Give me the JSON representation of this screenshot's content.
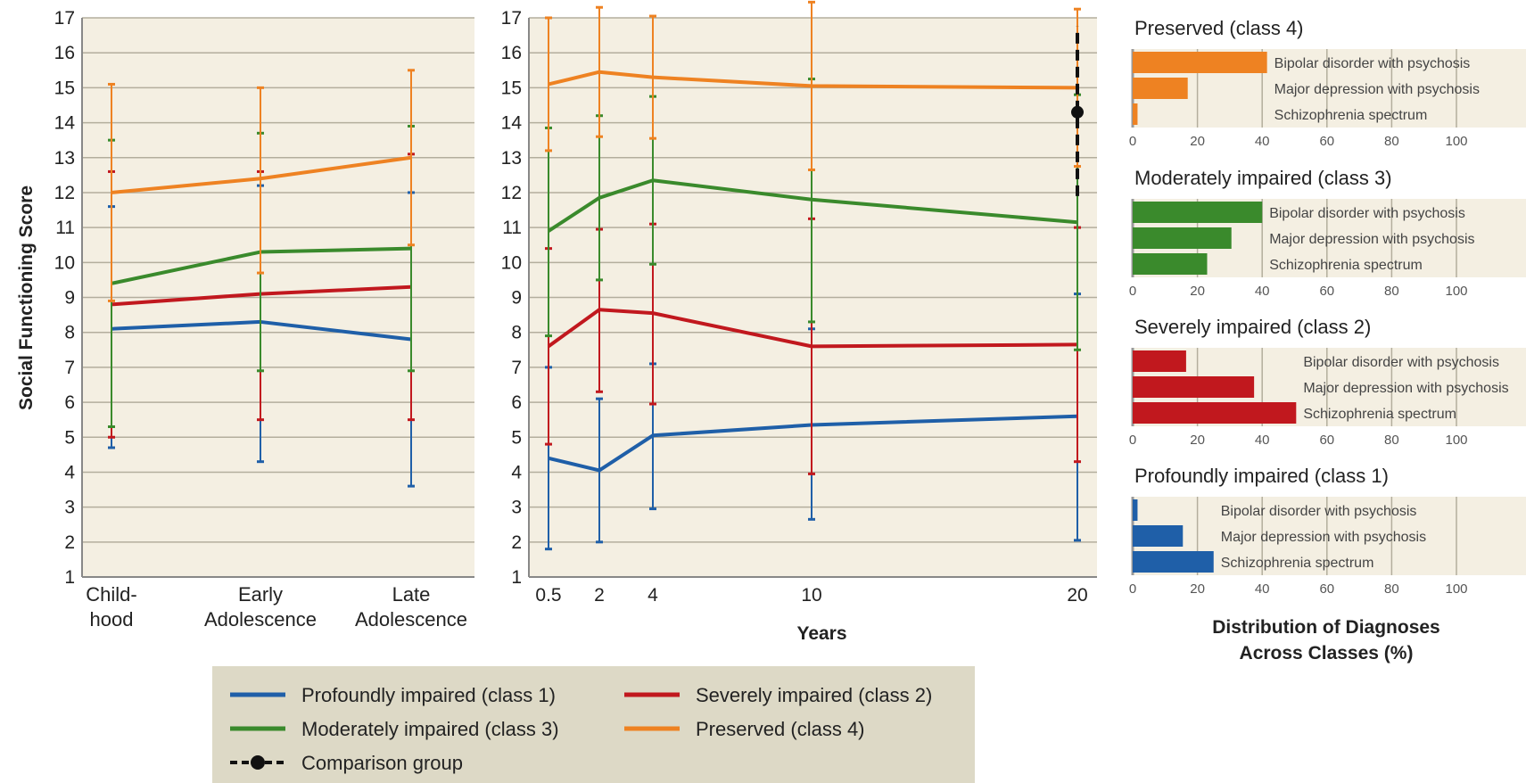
{
  "colors": {
    "profoundly": "#1f5fa8",
    "severely": "#c1181e",
    "moderately": "#3a8a2c",
    "preserved": "#ee8222",
    "panel_bg": "#f4efe2",
    "legend_bg": "#ddd9c6",
    "grid": "#b3ae9d",
    "comparison": "#111111"
  },
  "chart_data": [
    {
      "type": "line",
      "ylabel": "Social Functioning Score",
      "ylim": [
        1,
        17
      ],
      "yticks": [
        1,
        2,
        3,
        4,
        5,
        6,
        7,
        8,
        9,
        10,
        11,
        12,
        13,
        14,
        15,
        16,
        17
      ],
      "categories": [
        [
          "Child-",
          "hood"
        ],
        [
          "Early",
          "Adolescence"
        ],
        [
          "Late",
          "Adolescence"
        ]
      ],
      "grid": true,
      "series": [
        {
          "name": "Profoundly impaired (class 1)",
          "color_key": "profoundly",
          "values": [
            8.1,
            8.3,
            7.8
          ],
          "err_low": [
            4.7,
            4.3,
            3.6
          ],
          "err_high": [
            11.6,
            12.2,
            12.0
          ]
        },
        {
          "name": "Severely impaired (class 2)",
          "color_key": "severely",
          "values": [
            8.8,
            9.1,
            9.3
          ],
          "err_low": [
            5.0,
            5.5,
            5.5
          ],
          "err_high": [
            12.6,
            12.6,
            13.1
          ]
        },
        {
          "name": "Moderately impaired (class 3)",
          "color_key": "moderately",
          "values": [
            9.4,
            10.3,
            10.4
          ],
          "err_low": [
            5.3,
            6.9,
            6.9
          ],
          "err_high": [
            13.5,
            13.7,
            13.9
          ]
        },
        {
          "name": "Preserved (class 4)",
          "color_key": "preserved",
          "values": [
            12.0,
            12.4,
            13.0
          ],
          "err_low": [
            8.9,
            9.7,
            10.5
          ],
          "err_high": [
            15.1,
            15.0,
            15.5
          ]
        }
      ]
    },
    {
      "type": "line",
      "xlabel": "Years",
      "ylim": [
        1,
        17
      ],
      "yticks": [
        1,
        2,
        3,
        4,
        5,
        6,
        7,
        8,
        9,
        10,
        11,
        12,
        13,
        14,
        15,
        16,
        17
      ],
      "x": [
        0.5,
        2,
        4,
        10,
        20
      ],
      "xticks": [
        "0.5",
        "2",
        "4",
        "10",
        "20"
      ],
      "grid": true,
      "series": [
        {
          "name": "Profoundly impaired (class 1)",
          "color_key": "profoundly",
          "values": [
            4.4,
            4.05,
            5.05,
            5.35,
            5.6
          ],
          "err_low": [
            1.8,
            2.0,
            2.95,
            2.65,
            2.05
          ],
          "err_high": [
            7.0,
            6.1,
            7.1,
            8.1,
            9.1
          ]
        },
        {
          "name": "Severely impaired (class 2)",
          "color_key": "severely",
          "values": [
            7.6,
            8.65,
            8.55,
            7.6,
            7.65
          ],
          "err_low": [
            4.8,
            6.3,
            5.95,
            3.95,
            4.3
          ],
          "err_high": [
            10.4,
            10.95,
            11.1,
            11.25,
            11.0
          ]
        },
        {
          "name": "Moderately impaired (class 3)",
          "color_key": "moderately",
          "values": [
            10.9,
            11.85,
            12.35,
            11.8,
            11.15
          ],
          "err_low": [
            7.9,
            9.5,
            9.95,
            8.3,
            7.5
          ],
          "err_high": [
            13.85,
            14.2,
            14.75,
            15.25,
            14.8
          ]
        },
        {
          "name": "Preserved (class 4)",
          "color_key": "preserved",
          "values": [
            15.1,
            15.45,
            15.3,
            15.05,
            15.0
          ],
          "err_low": [
            13.2,
            13.6,
            13.55,
            12.65,
            12.75
          ],
          "err_high": [
            17.0,
            17.3,
            17.05,
            17.45,
            17.25
          ]
        },
        {
          "name": "Comparison group",
          "color_key": "comparison",
          "dashed": true,
          "x": [
            20
          ],
          "values": [
            14.3
          ],
          "err_low": [
            11.9
          ],
          "err_high": [
            16.75
          ]
        }
      ]
    },
    {
      "type": "bar",
      "orientation": "horizontal",
      "xlabel": [
        "Distribution of Diagnoses",
        "Across Classes (%)"
      ],
      "xlim": [
        0,
        100
      ],
      "xticks": [
        0,
        20,
        40,
        60,
        80,
        100
      ],
      "panels": [
        {
          "title": "Preserved (class 4)",
          "color_key": "preserved",
          "categories": [
            "Bipolar disorder with psychosis",
            "Major depression with psychosis",
            "Schizophrenia spectrum"
          ],
          "values": [
            41.5,
            17,
            1.5
          ]
        },
        {
          "title": "Moderately impaired (class 3)",
          "color_key": "moderately",
          "categories": [
            "Bipolar disorder with psychosis",
            "Major depression with psychosis",
            "Schizophrenia spectrum"
          ],
          "values": [
            40,
            30.5,
            23
          ]
        },
        {
          "title": "Severely impaired (class 2)",
          "color_key": "severely",
          "categories": [
            "Bipolar disorder with psychosis",
            "Major depression with psychosis",
            "Schizophrenia spectrum"
          ],
          "values": [
            16.5,
            37.5,
            50.5
          ]
        },
        {
          "title": "Profoundly impaired (class 1)",
          "color_key": "profoundly",
          "categories": [
            "Bipolar disorder with psychosis",
            "Major depression with psychosis",
            "Schizophrenia spectrum"
          ],
          "values": [
            1.5,
            15.5,
            25
          ]
        }
      ]
    }
  ],
  "legend": {
    "items": [
      {
        "label": "Profoundly impaired (class 1)",
        "color_key": "profoundly"
      },
      {
        "label": "Severely impaired (class 2)",
        "color_key": "severely"
      },
      {
        "label": "Moderately impaired (class 3)",
        "color_key": "moderately"
      },
      {
        "label": "Preserved (class 4)",
        "color_key": "preserved"
      },
      {
        "label": "Comparison  group",
        "color_key": "comparison",
        "dashed": true
      }
    ]
  }
}
